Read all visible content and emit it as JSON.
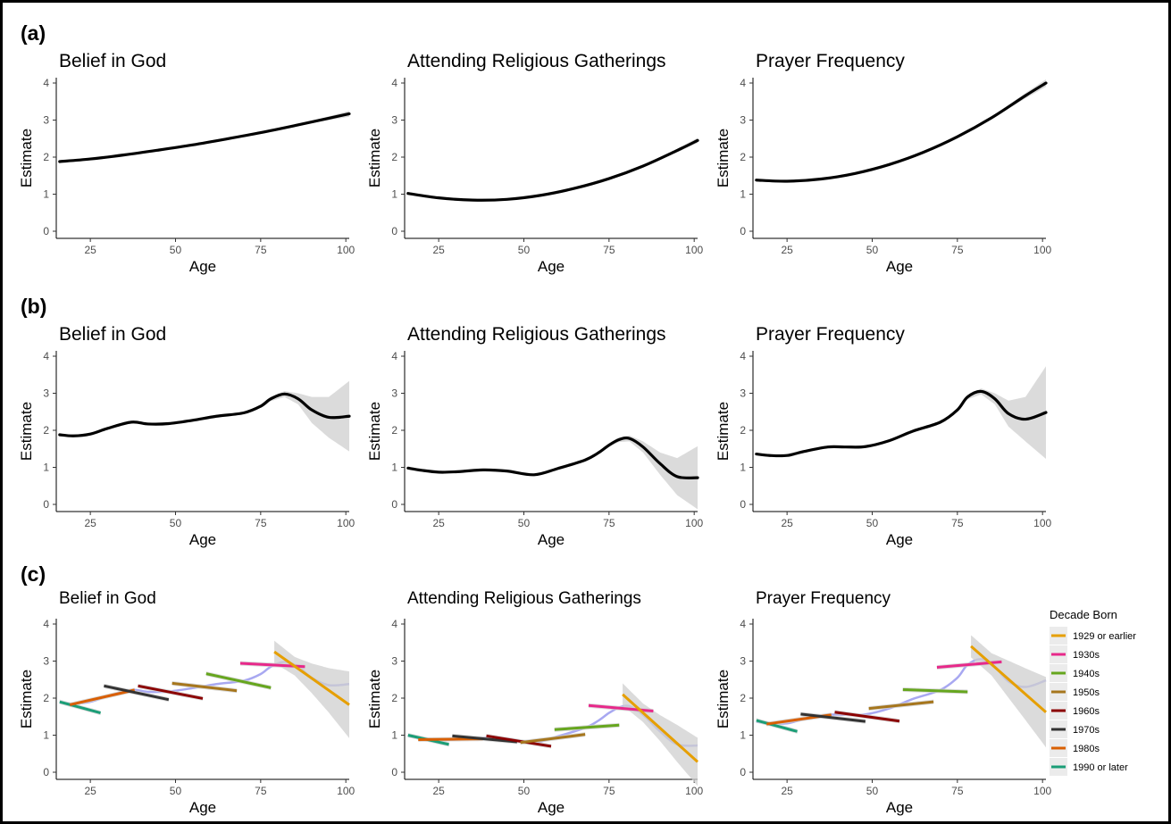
{
  "panel_labels": [
    "(a)",
    "(b)",
    "(c)"
  ],
  "legend": {
    "title": "Decade Born",
    "entries": [
      {
        "label": "1929 or earlier",
        "color": "#E69F00"
      },
      {
        "label": "1930s",
        "color": "#E7298A"
      },
      {
        "label": "1940s",
        "color": "#66A61E"
      },
      {
        "label": "1950s",
        "color": "#A6761D"
      },
      {
        "label": "1960s",
        "color": "#8B0000"
      },
      {
        "label": "1970s",
        "color": "#333333"
      },
      {
        "label": "1980s",
        "color": "#D95F02"
      },
      {
        "label": "1990 or later",
        "color": "#1B9E77"
      }
    ]
  },
  "chart_data": [
    {
      "id": "a1",
      "row": "(a)",
      "type": "line",
      "title": "Belief in God",
      "xlabel": "Age",
      "ylabel": "Estimate",
      "xlim": [
        15,
        101
      ],
      "ylim": [
        0,
        4
      ],
      "xticks": [
        25,
        50,
        75,
        100
      ],
      "yticks": [
        0,
        1,
        2,
        3,
        4
      ],
      "series": [
        {
          "x": [
            16,
            25,
            35,
            45,
            55,
            65,
            75,
            85,
            95,
            101
          ],
          "y": [
            1.88,
            1.95,
            2.06,
            2.19,
            2.33,
            2.49,
            2.66,
            2.85,
            3.05,
            3.17
          ]
        }
      ],
      "ci": {
        "x": [
          85,
          92,
          101
        ],
        "width": [
          0.02,
          0.04,
          0.08
        ]
      }
    },
    {
      "id": "a2",
      "row": "(a)",
      "type": "line",
      "title": "Attending Religious Gatherings",
      "xlabel": "Age",
      "ylabel": "Estimate",
      "xlim": [
        15,
        101
      ],
      "ylim": [
        0,
        4
      ],
      "xticks": [
        25,
        50,
        75,
        100
      ],
      "yticks": [
        0,
        1,
        2,
        3,
        4
      ],
      "series": [
        {
          "x": [
            16,
            25,
            35,
            45,
            55,
            65,
            75,
            85,
            95,
            101
          ],
          "y": [
            1.02,
            0.9,
            0.84,
            0.86,
            0.97,
            1.16,
            1.42,
            1.76,
            2.18,
            2.45
          ]
        }
      ],
      "ci": {
        "x": [
          85,
          92,
          101
        ],
        "width": [
          0.02,
          0.04,
          0.07
        ]
      }
    },
    {
      "id": "a3",
      "row": "(a)",
      "type": "line",
      "title": "Prayer Frequency",
      "xlabel": "Age",
      "ylabel": "Estimate",
      "xlim": [
        15,
        101
      ],
      "ylim": [
        0,
        4
      ],
      "xticks": [
        25,
        50,
        75,
        100
      ],
      "yticks": [
        0,
        1,
        2,
        3,
        4
      ],
      "series": [
        {
          "x": [
            16,
            25,
            35,
            45,
            55,
            65,
            75,
            85,
            95,
            101
          ],
          "y": [
            1.38,
            1.35,
            1.41,
            1.56,
            1.8,
            2.13,
            2.55,
            3.06,
            3.66,
            4.0
          ]
        }
      ],
      "ci": {
        "x": [
          85,
          92,
          101
        ],
        "width": [
          0.03,
          0.06,
          0.1
        ]
      }
    },
    {
      "id": "b1",
      "row": "(b)",
      "type": "line",
      "title": "Belief in God",
      "xlabel": "Age",
      "ylabel": "Estimate",
      "xlim": [
        15,
        101
      ],
      "ylim": [
        0,
        4
      ],
      "xticks": [
        25,
        50,
        75,
        100
      ],
      "yticks": [
        0,
        1,
        2,
        3,
        4
      ],
      "series": [
        {
          "x": [
            16,
            20,
            25,
            30,
            37,
            42,
            48,
            55,
            62,
            70,
            75,
            78,
            82,
            86,
            90,
            95,
            101
          ],
          "y": [
            1.88,
            1.85,
            1.9,
            2.05,
            2.22,
            2.17,
            2.18,
            2.27,
            2.38,
            2.47,
            2.65,
            2.85,
            2.98,
            2.85,
            2.55,
            2.35,
            2.38
          ]
        }
      ],
      "ci": {
        "x": [
          75,
          82,
          86,
          90,
          95,
          101
        ],
        "width": [
          0.05,
          0.08,
          0.15,
          0.35,
          0.55,
          0.95
        ]
      }
    },
    {
      "id": "b2",
      "row": "(b)",
      "type": "line",
      "title": "Attending Religious Gatherings",
      "xlabel": "Age",
      "ylabel": "Estimate",
      "xlim": [
        15,
        101
      ],
      "ylim": [
        0,
        4
      ],
      "xticks": [
        25,
        50,
        75,
        100
      ],
      "yticks": [
        0,
        1,
        2,
        3,
        4
      ],
      "series": [
        {
          "x": [
            16,
            20,
            25,
            30,
            38,
            45,
            53,
            60,
            68,
            72,
            75,
            78,
            81,
            85,
            90,
            95,
            101
          ],
          "y": [
            0.98,
            0.92,
            0.87,
            0.88,
            0.93,
            0.9,
            0.8,
            0.97,
            1.2,
            1.4,
            1.6,
            1.75,
            1.78,
            1.55,
            1.1,
            0.75,
            0.72
          ]
        }
      ],
      "ci": {
        "x": [
          75,
          81,
          85,
          90,
          95,
          101
        ],
        "width": [
          0.05,
          0.08,
          0.15,
          0.3,
          0.5,
          0.85
        ]
      }
    },
    {
      "id": "b3",
      "row": "(b)",
      "type": "line",
      "title": "Prayer Frequency",
      "xlabel": "Age",
      "ylabel": "Estimate",
      "xlim": [
        15,
        101
      ],
      "ylim": [
        0,
        4
      ],
      "xticks": [
        25,
        50,
        75,
        100
      ],
      "yticks": [
        0,
        1,
        2,
        3,
        4
      ],
      "series": [
        {
          "x": [
            16,
            20,
            25,
            30,
            37,
            42,
            48,
            55,
            62,
            70,
            75,
            78,
            82,
            86,
            90,
            95,
            101
          ],
          "y": [
            1.36,
            1.32,
            1.32,
            1.43,
            1.55,
            1.55,
            1.56,
            1.72,
            1.98,
            2.22,
            2.55,
            2.9,
            3.05,
            2.85,
            2.45,
            2.3,
            2.48
          ]
        }
      ],
      "ci": {
        "x": [
          75,
          82,
          86,
          90,
          95,
          101
        ],
        "width": [
          0.05,
          0.08,
          0.15,
          0.35,
          0.6,
          1.25
        ]
      }
    },
    {
      "id": "c1",
      "row": "(c)",
      "type": "line",
      "title": "Belief in God",
      "xlabel": "Age",
      "ylabel": "Estimate",
      "xlim": [
        15,
        101
      ],
      "ylim": [
        0,
        4
      ],
      "xticks": [
        25,
        50,
        75,
        100
      ],
      "yticks": [
        0,
        1,
        2,
        3,
        4
      ],
      "smooth": {
        "x": [
          16,
          20,
          25,
          30,
          37,
          42,
          48,
          55,
          62,
          70,
          75,
          78,
          82,
          86,
          90,
          95,
          101
        ],
        "y": [
          1.88,
          1.85,
          1.9,
          2.05,
          2.22,
          2.17,
          2.18,
          2.27,
          2.38,
          2.47,
          2.65,
          2.85,
          2.98,
          2.85,
          2.55,
          2.35,
          2.38
        ]
      },
      "cohorts": [
        {
          "decade": "1990 or later",
          "x": [
            16,
            28
          ],
          "y": [
            1.9,
            1.6
          ]
        },
        {
          "decade": "1980s",
          "x": [
            19,
            38
          ],
          "y": [
            1.82,
            2.22
          ]
        },
        {
          "decade": "1970s",
          "x": [
            29,
            48
          ],
          "y": [
            2.33,
            1.96
          ]
        },
        {
          "decade": "1960s",
          "x": [
            39,
            58
          ],
          "y": [
            2.33,
            1.99
          ]
        },
        {
          "decade": "1950s",
          "x": [
            49,
            68
          ],
          "y": [
            2.4,
            2.2
          ]
        },
        {
          "decade": "1940s",
          "x": [
            59,
            78
          ],
          "y": [
            2.66,
            2.28
          ]
        },
        {
          "decade": "1930s",
          "x": [
            69,
            88
          ],
          "y": [
            2.94,
            2.85
          ]
        },
        {
          "decade": "1929 or earlier",
          "x": [
            79,
            101
          ],
          "y": [
            3.25,
            1.82
          ]
        }
      ],
      "cohort_ci": {
        "x": [
          79,
          85,
          90,
          95,
          101
        ],
        "width": [
          0.3,
          0.25,
          0.4,
          0.6,
          0.9
        ]
      }
    },
    {
      "id": "c2",
      "row": "(c)",
      "type": "line",
      "title": "Attending Religious Gatherings",
      "xlabel": "Age",
      "ylabel": "Estimate",
      "xlim": [
        15,
        101
      ],
      "ylim": [
        0,
        4
      ],
      "xticks": [
        25,
        50,
        75,
        100
      ],
      "yticks": [
        0,
        1,
        2,
        3,
        4
      ],
      "smooth": {
        "x": [
          16,
          20,
          25,
          30,
          38,
          45,
          53,
          60,
          68,
          72,
          75,
          78,
          81,
          85,
          90,
          95,
          101
        ],
        "y": [
          0.98,
          0.92,
          0.87,
          0.88,
          0.93,
          0.9,
          0.8,
          0.97,
          1.2,
          1.4,
          1.6,
          1.75,
          1.78,
          1.55,
          1.1,
          0.75,
          0.72
        ]
      },
      "cohorts": [
        {
          "decade": "1990 or later",
          "x": [
            16,
            28
          ],
          "y": [
            1.0,
            0.75
          ]
        },
        {
          "decade": "1980s",
          "x": [
            19,
            38
          ],
          "y": [
            0.88,
            0.9
          ]
        },
        {
          "decade": "1970s",
          "x": [
            29,
            48
          ],
          "y": [
            0.98,
            0.82
          ]
        },
        {
          "decade": "1960s",
          "x": [
            39,
            58
          ],
          "y": [
            0.98,
            0.7
          ]
        },
        {
          "decade": "1950s",
          "x": [
            49,
            68
          ],
          "y": [
            0.8,
            1.02
          ]
        },
        {
          "decade": "1940s",
          "x": [
            59,
            78
          ],
          "y": [
            1.15,
            1.27
          ]
        },
        {
          "decade": "1930s",
          "x": [
            69,
            88
          ],
          "y": [
            1.8,
            1.65
          ]
        },
        {
          "decade": "1929 or earlier",
          "x": [
            79,
            101
          ],
          "y": [
            2.1,
            0.28
          ]
        }
      ],
      "cohort_ci": {
        "x": [
          79,
          85,
          90,
          95,
          101
        ],
        "width": [
          0.3,
          0.25,
          0.35,
          0.5,
          0.65
        ]
      }
    },
    {
      "id": "c3",
      "row": "(c)",
      "type": "line",
      "title": "Prayer Frequency",
      "xlabel": "Age",
      "ylabel": "Estimate",
      "xlim": [
        15,
        101
      ],
      "ylim": [
        0,
        4
      ],
      "xticks": [
        25,
        50,
        75,
        100
      ],
      "yticks": [
        0,
        1,
        2,
        3,
        4
      ],
      "smooth": {
        "x": [
          16,
          20,
          25,
          30,
          37,
          42,
          48,
          55,
          62,
          70,
          75,
          78,
          82,
          86,
          90,
          95,
          101
        ],
        "y": [
          1.36,
          1.32,
          1.32,
          1.43,
          1.55,
          1.55,
          1.56,
          1.72,
          1.98,
          2.22,
          2.55,
          2.9,
          3.05,
          2.85,
          2.45,
          2.3,
          2.48
        ]
      },
      "cohorts": [
        {
          "decade": "1990 or later",
          "x": [
            16,
            28
          ],
          "y": [
            1.4,
            1.1
          ]
        },
        {
          "decade": "1980s",
          "x": [
            19,
            38
          ],
          "y": [
            1.3,
            1.55
          ]
        },
        {
          "decade": "1970s",
          "x": [
            29,
            48
          ],
          "y": [
            1.57,
            1.37
          ]
        },
        {
          "decade": "1960s",
          "x": [
            39,
            58
          ],
          "y": [
            1.62,
            1.38
          ]
        },
        {
          "decade": "1950s",
          "x": [
            49,
            68
          ],
          "y": [
            1.72,
            1.9
          ]
        },
        {
          "decade": "1940s",
          "x": [
            59,
            78
          ],
          "y": [
            2.23,
            2.17
          ]
        },
        {
          "decade": "1930s",
          "x": [
            69,
            88
          ],
          "y": [
            2.83,
            2.98
          ]
        },
        {
          "decade": "1929 or earlier",
          "x": [
            79,
            101
          ],
          "y": [
            3.4,
            1.62
          ]
        }
      ],
      "cohort_ci": {
        "x": [
          79,
          85,
          90,
          95,
          101
        ],
        "width": [
          0.3,
          0.3,
          0.5,
          0.7,
          0.95
        ]
      }
    }
  ]
}
